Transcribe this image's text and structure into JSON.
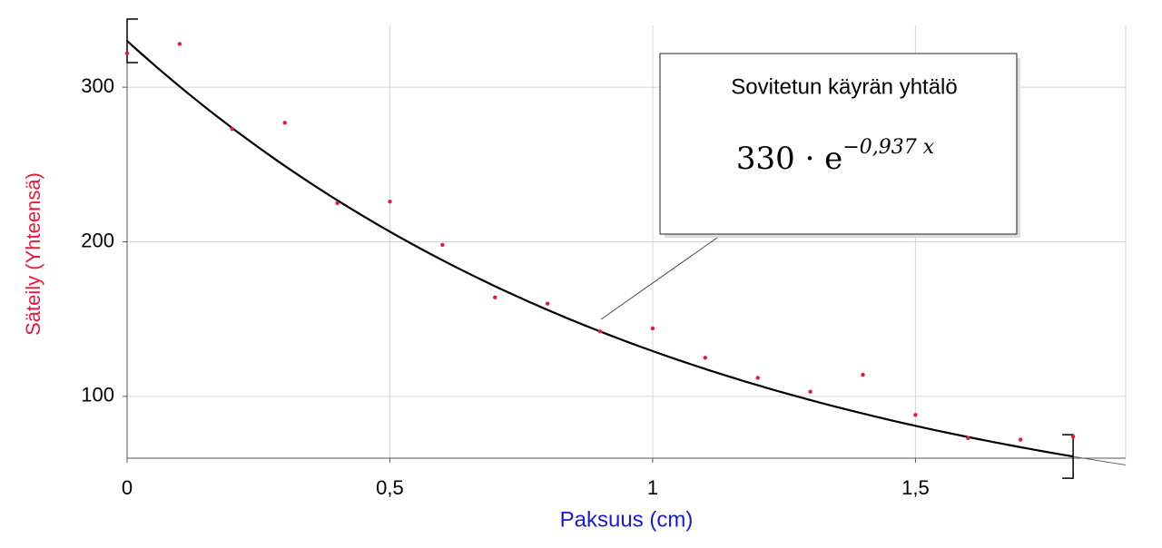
{
  "chart_data": {
    "type": "scatter",
    "x_label": "Paksuus (cm)",
    "y_label": "Säteily (Yhteensä)",
    "x": [
      0,
      0.1,
      0.2,
      0.3,
      0.4,
      0.5,
      0.6,
      0.7,
      0.8,
      0.9,
      1.0,
      1.1,
      1.2,
      1.3,
      1.4,
      1.5,
      1.6,
      1.7,
      1.8
    ],
    "values": [
      322,
      328,
      273,
      277,
      225,
      226,
      198,
      164,
      160,
      142,
      144,
      125,
      112,
      103,
      114,
      88,
      73,
      72,
      74
    ],
    "color": "#e8193c",
    "xlim": [
      0,
      1.9
    ],
    "ylim": [
      60,
      340
    ],
    "xticks": [
      0,
      {
        "value": 0.5,
        "label": "0,5"
      },
      1,
      {
        "value": 1.5,
        "label": "1,5"
      }
    ],
    "yticks": [
      100,
      200,
      300
    ],
    "grid": true,
    "fit": {
      "a": 330,
      "k": -0.937,
      "range": [
        0,
        1.8
      ],
      "title": "Sovitetun käyrän yhtälö",
      "label": "330 · e",
      "exponent_label": "−0,937 x"
    }
  }
}
